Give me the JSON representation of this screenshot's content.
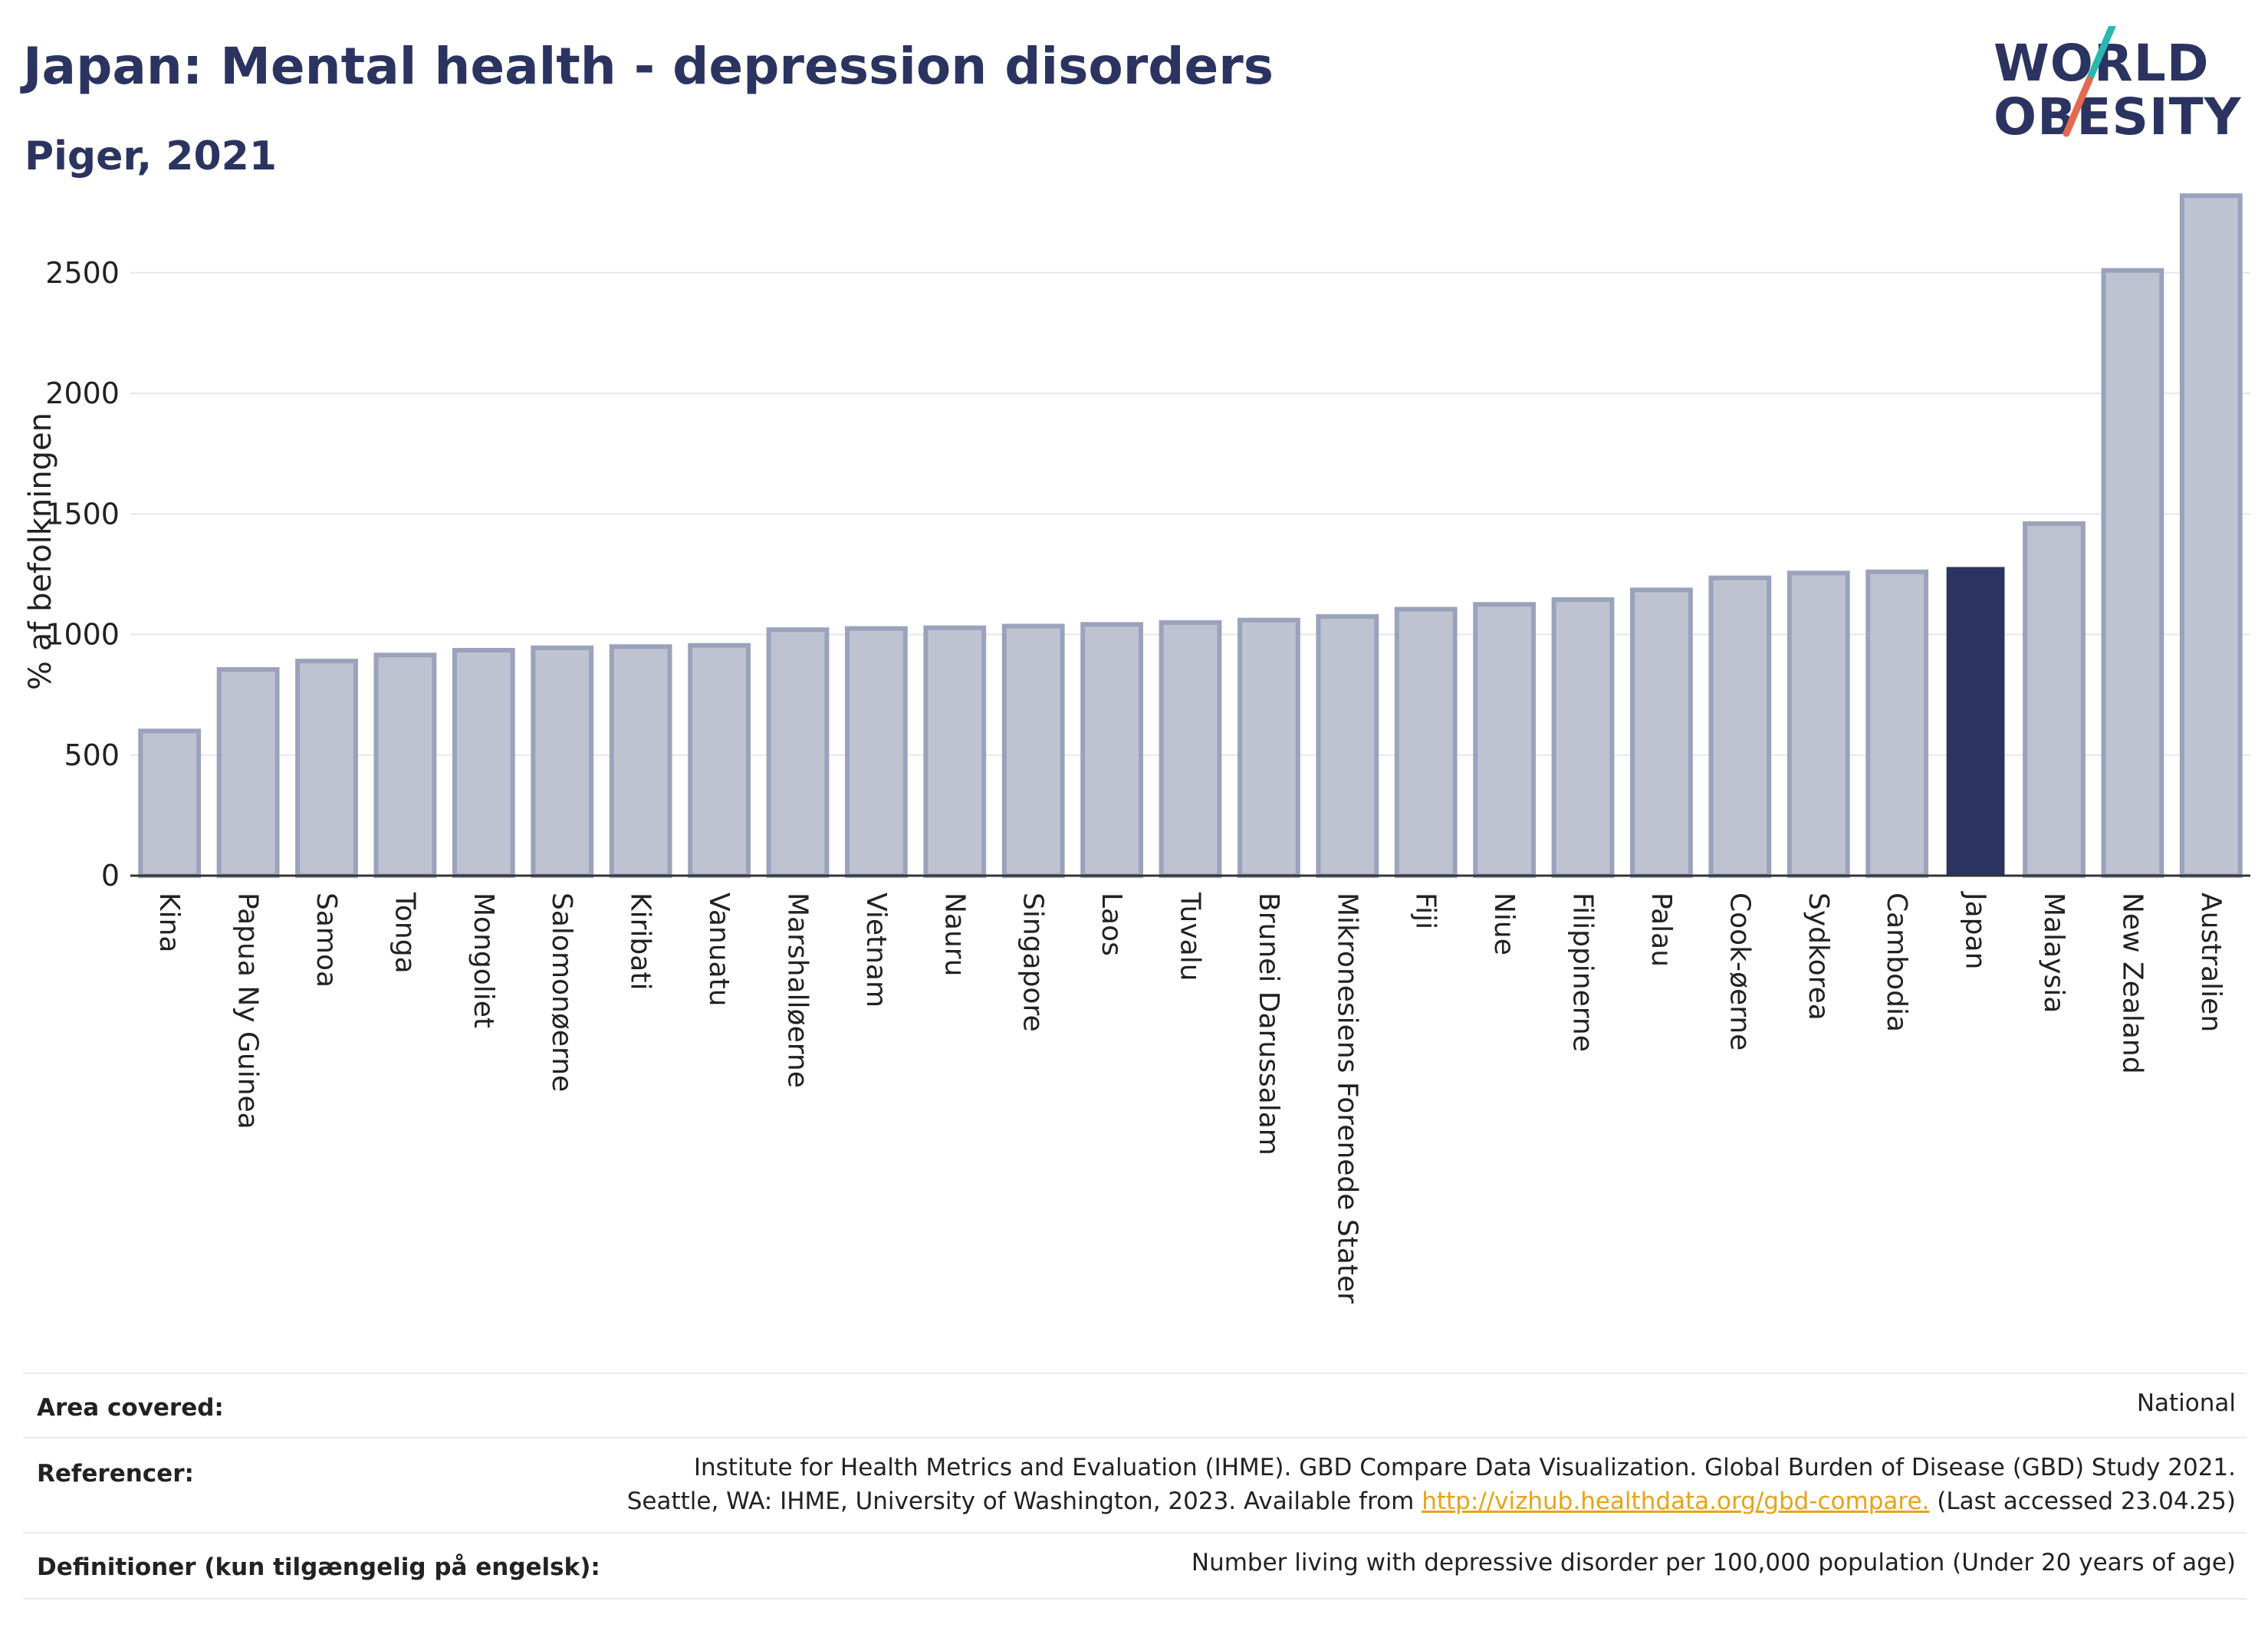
{
  "header": {
    "title": "Japan: Mental health - depression disorders",
    "subtitle": "Piger, 2021"
  },
  "logo": {
    "line1": "WORLD",
    "line2": "OBESITY"
  },
  "colors": {
    "bar": "#bfc3d1",
    "bar_stroke": "#9ba2bb",
    "highlight": "#2b3460",
    "grid": "#e6e7ee",
    "title": "#2b3460",
    "link": "#e8a317"
  },
  "chart_data": {
    "type": "bar",
    "ylabel": "% af befolkningen",
    "ylim": [
      0,
      2900
    ],
    "yticks": [
      0,
      500,
      1000,
      1500,
      2000,
      2500
    ],
    "highlight": "Japan",
    "categories": [
      "Kina",
      "Papua Ny Guinea",
      "Samoa",
      "Tonga",
      "Mongoliet",
      "Salomonøerne",
      "Kiribati",
      "Vanuatu",
      "Marshalløerne",
      "Vietnam",
      "Nauru",
      "Singapore",
      "Laos",
      "Tuvalu",
      "Brunei Darussalam",
      "Mikronesiens Forenede Stater",
      "Fiji",
      "Niue",
      "Filippinerne",
      "Palau",
      "Cook-øerne",
      "Sydkorea",
      "Cambodia",
      "Japan",
      "Malaysia",
      "New Zealand",
      "Australien"
    ],
    "values": [
      600,
      855,
      890,
      915,
      935,
      945,
      950,
      955,
      1020,
      1025,
      1028,
      1035,
      1042,
      1050,
      1060,
      1075,
      1105,
      1125,
      1145,
      1185,
      1235,
      1255,
      1260,
      1280,
      1460,
      2510,
      2820
    ]
  },
  "footer": {
    "area_key": "Area covered:",
    "area_val": "National",
    "ref_key": "Referencer:",
    "ref_line1": "Institute for Health Metrics and Evaluation (IHME). GBD Compare Data Visualization. Global Burden of Disease (GBD) Study 2021.",
    "ref_line2_pre": "Seattle, WA: IHME, University of Washington, 2023. Available from ",
    "ref_link": "http://vizhub.healthdata.org/gbd-compare.",
    "ref_line2_post": " (Last accessed 23.04.25)",
    "def_key": "Definitioner (kun tilgængelig på engelsk):",
    "def_val": "Number living with depressive disorder per 100,000 population (Under 20 years of age)"
  }
}
